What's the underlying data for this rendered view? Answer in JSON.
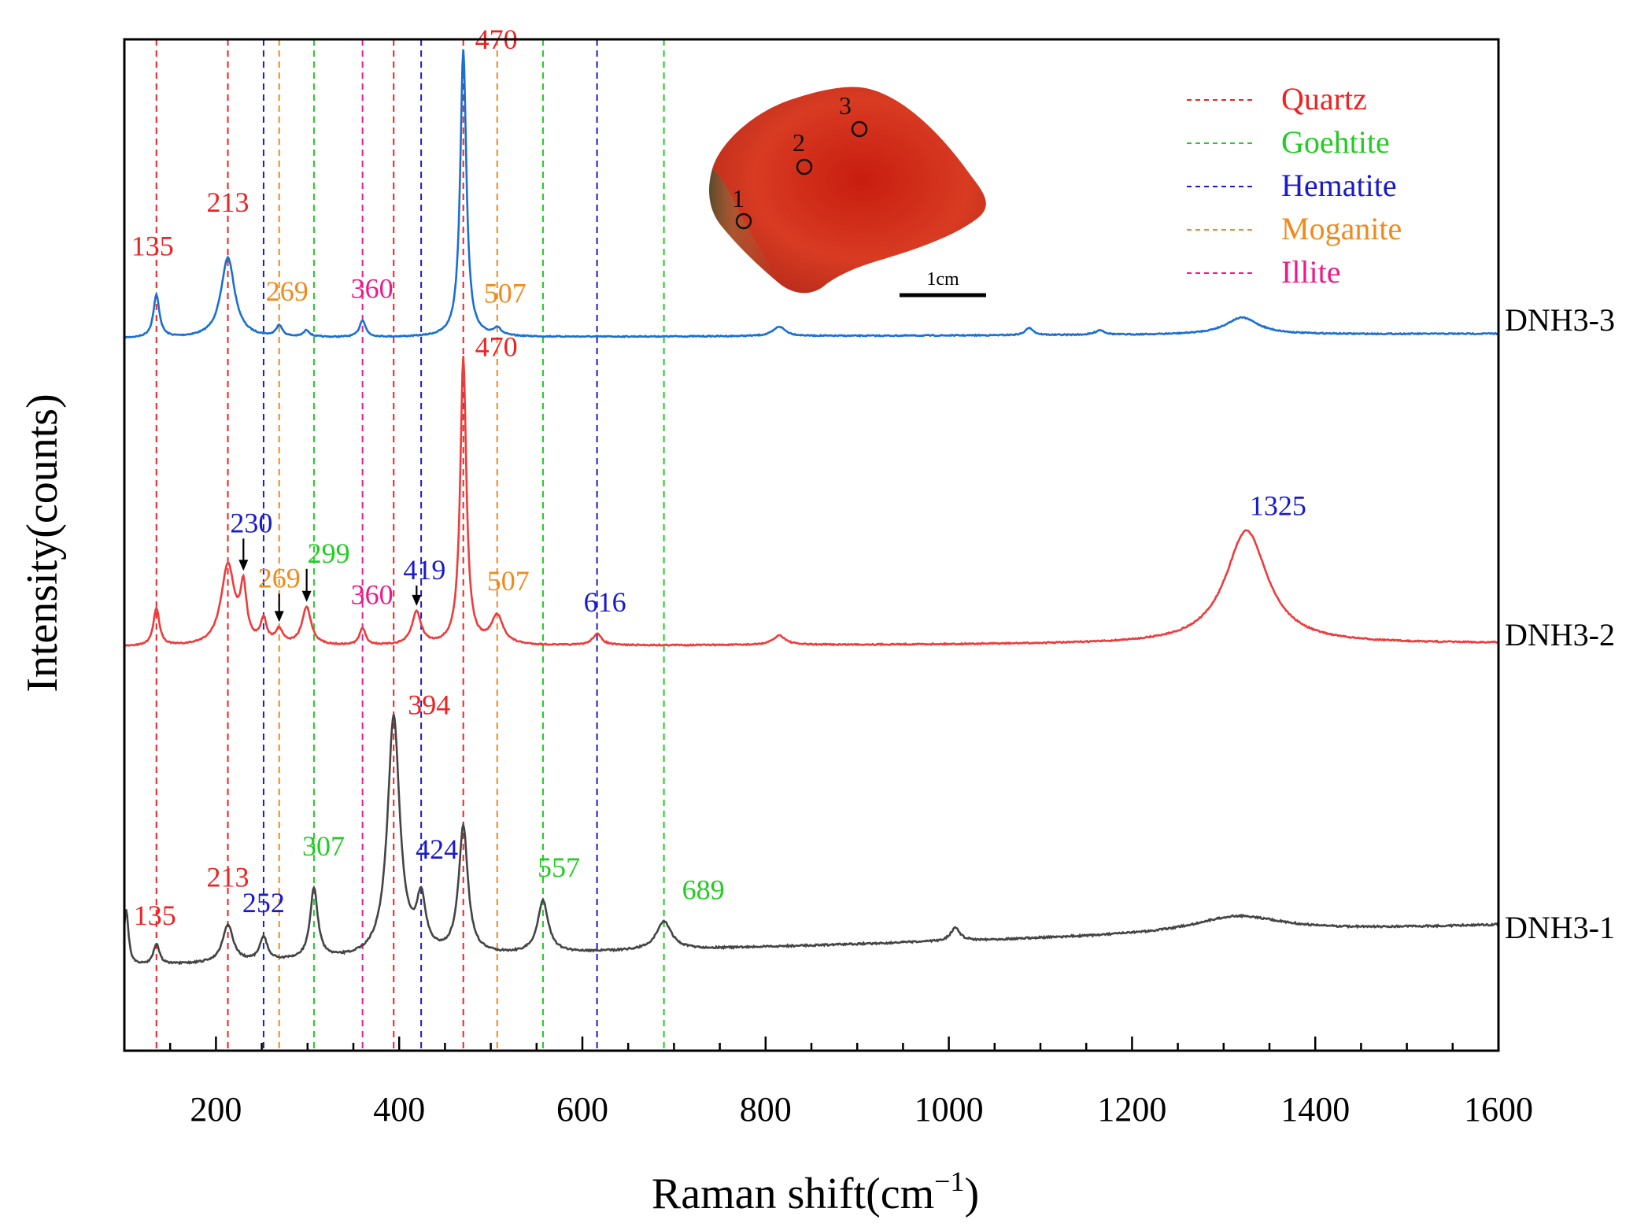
{
  "chart_data": {
    "type": "line",
    "title": "",
    "xlabel": "Raman shift(cm",
    "xlabel_sup": "−1",
    "xlabel_close": ")",
    "ylabel": "Intensity(counts)",
    "xlim": [
      100,
      1600
    ],
    "x_ticks": [
      200,
      400,
      600,
      800,
      1000,
      1200,
      1400,
      1600
    ],
    "grid": false,
    "legend_position": "top-right",
    "minerals": [
      {
        "name": "Quartz",
        "color": "#ee2222",
        "lines": [
          135,
          213,
          394,
          470
        ]
      },
      {
        "name": "Goehtite",
        "color": "#22cc22",
        "lines": [
          307,
          557,
          689
        ]
      },
      {
        "name": "Hematite",
        "color": "#1a1acc",
        "lines": [
          252,
          424,
          616
        ]
      },
      {
        "name": "Moganite",
        "color": "#f08a1a",
        "lines": [
          269,
          507
        ]
      },
      {
        "name": "Illite",
        "color": "#ee1a8a",
        "lines": [
          360
        ]
      }
    ],
    "series": [
      {
        "name": "DNH3-3",
        "color": "#1a6fd0",
        "baseline": 0.0,
        "peaks": [
          {
            "x": 135,
            "h": 0.45,
            "w": 4
          },
          {
            "x": 213,
            "h": 0.85,
            "w": 9
          },
          {
            "x": 269,
            "h": 0.12,
            "w": 4
          },
          {
            "x": 299,
            "h": 0.07,
            "w": 4
          },
          {
            "x": 360,
            "h": 0.18,
            "w": 4
          },
          {
            "x": 470,
            "h": 3.05,
            "w": 4
          },
          {
            "x": 507,
            "h": 0.08,
            "w": 5
          },
          {
            "x": 815,
            "h": 0.1,
            "w": 8
          },
          {
            "x": 1088,
            "h": 0.08,
            "w": 5
          },
          {
            "x": 1165,
            "h": 0.05,
            "w": 6
          },
          {
            "x": 1320,
            "h": 0.18,
            "w": 22
          }
        ],
        "labels": [
          {
            "text": "135",
            "x": 135,
            "color": "#ee2222"
          },
          {
            "text": "213",
            "x": 213,
            "color": "#ee2222"
          },
          {
            "text": "269",
            "x": 269,
            "color": "#f08a1a"
          },
          {
            "text": "360",
            "x": 360,
            "color": "#ee1a8a"
          },
          {
            "text": "470",
            "x": 470,
            "color": "#ee2222"
          },
          {
            "text": "507",
            "x": 507,
            "color": "#f08a1a"
          }
        ]
      },
      {
        "name": "DNH3-2",
        "color": "#ee3b3b",
        "baseline": 0.0,
        "peaks": [
          {
            "x": 135,
            "h": 0.4,
            "w": 4
          },
          {
            "x": 213,
            "h": 0.85,
            "w": 9
          },
          {
            "x": 230,
            "h": 0.55,
            "w": 4
          },
          {
            "x": 252,
            "h": 0.25,
            "w": 4
          },
          {
            "x": 269,
            "h": 0.15,
            "w": 5
          },
          {
            "x": 299,
            "h": 0.4,
            "w": 6
          },
          {
            "x": 360,
            "h": 0.18,
            "w": 4
          },
          {
            "x": 419,
            "h": 0.35,
            "w": 6
          },
          {
            "x": 470,
            "h": 3.05,
            "w": 4
          },
          {
            "x": 507,
            "h": 0.3,
            "w": 8
          },
          {
            "x": 616,
            "h": 0.12,
            "w": 6
          },
          {
            "x": 815,
            "h": 0.1,
            "w": 8
          },
          {
            "x": 1325,
            "h": 1.2,
            "w": 28
          }
        ],
        "labels": [
          {
            "text": "230",
            "x": 230,
            "color": "#1a1acc"
          },
          {
            "text": "269",
            "x": 269,
            "color": "#f08a1a"
          },
          {
            "text": "299",
            "x": 299,
            "color": "#22cc22"
          },
          {
            "text": "360",
            "x": 360,
            "color": "#ee1a8a"
          },
          {
            "text": "419",
            "x": 419,
            "color": "#1a1acc"
          },
          {
            "text": "470",
            "x": 470,
            "color": "#ee2222"
          },
          {
            "text": "507",
            "x": 507,
            "color": "#f08a1a"
          },
          {
            "text": "616",
            "x": 616,
            "color": "#1a1acc"
          },
          {
            "text": "1325",
            "x": 1325,
            "color": "#1a1acc"
          }
        ]
      },
      {
        "name": "DNH3-1",
        "color": "#444444",
        "baseline": 0.0,
        "peaks": [
          {
            "x": 102,
            "h": 0.6,
            "w": 3
          },
          {
            "x": 135,
            "h": 0.22,
            "w": 4
          },
          {
            "x": 213,
            "h": 0.4,
            "w": 7
          },
          {
            "x": 252,
            "h": 0.25,
            "w": 5
          },
          {
            "x": 307,
            "h": 0.75,
            "w": 5
          },
          {
            "x": 394,
            "h": 2.55,
            "w": 8
          },
          {
            "x": 424,
            "h": 0.55,
            "w": 6
          },
          {
            "x": 470,
            "h": 1.35,
            "w": 6
          },
          {
            "x": 557,
            "h": 0.55,
            "w": 7
          },
          {
            "x": 689,
            "h": 0.3,
            "w": 10
          },
          {
            "x": 1007,
            "h": 0.14,
            "w": 6
          },
          {
            "x": 1315,
            "h": 0.18,
            "w": 60
          }
        ],
        "labels": [
          {
            "text": "135",
            "x": 135,
            "color": "#ee2222"
          },
          {
            "text": "213",
            "x": 213,
            "color": "#ee2222"
          },
          {
            "text": "252",
            "x": 252,
            "color": "#1a1acc"
          },
          {
            "text": "307",
            "x": 307,
            "color": "#22cc22"
          },
          {
            "text": "394",
            "x": 394,
            "color": "#ee2222"
          },
          {
            "text": "424",
            "x": 424,
            "color": "#1a1acc"
          },
          {
            "text": "557",
            "x": 557,
            "color": "#22cc22"
          },
          {
            "text": "689",
            "x": 689,
            "color": "#22cc22"
          }
        ]
      }
    ]
  },
  "inset": {
    "spot_labels": [
      "1",
      "2",
      "3"
    ],
    "scale_label": "1cm"
  }
}
